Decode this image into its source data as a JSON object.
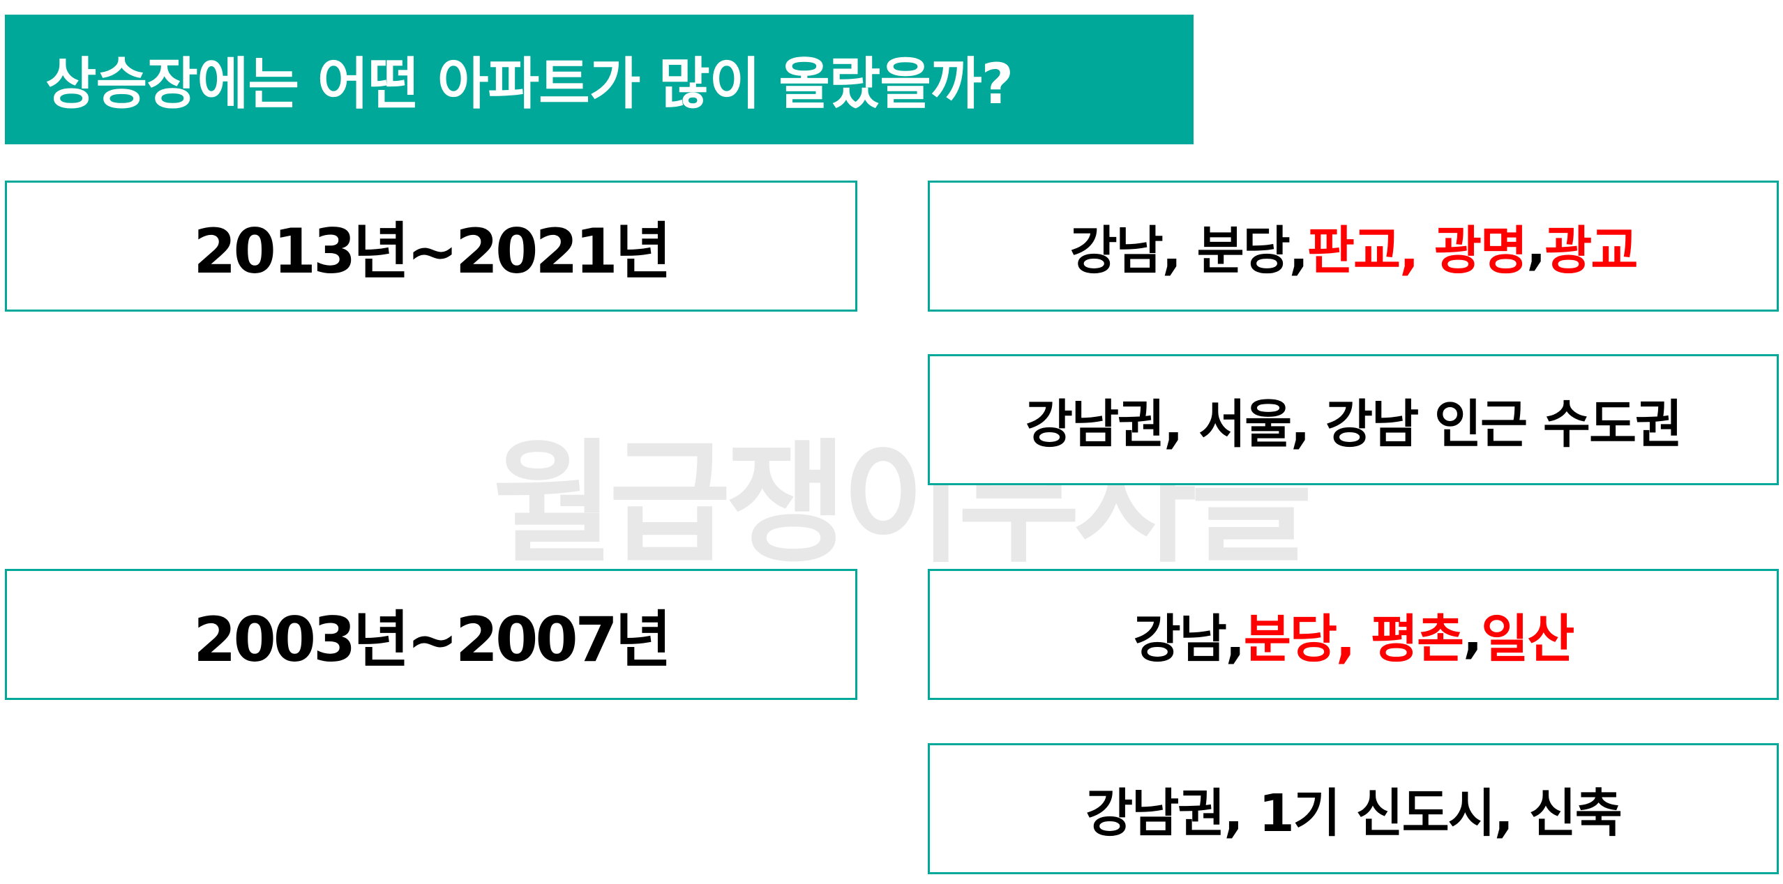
{
  "title": "상승장에는 어떤 아파트가 많이 올랐을까?",
  "watermark": "월급쟁이부자들",
  "colors": {
    "accent": "#00a89a",
    "highlight": "#ff0000",
    "text": "#000000"
  },
  "period_recent": "2013년~2021년",
  "period_past": "2003년~2007년",
  "recent_areas": [
    "강남, 분당, ",
    "판교, 광명",
    ", ",
    "광교"
  ],
  "recent_summary": "강남권, 서울, 강남 인근 수도권",
  "past_areas": [
    "강남, ",
    "분당, 평촌",
    ", ",
    "일산"
  ],
  "past_summary": "강남권, 1기 신도시, 신축"
}
